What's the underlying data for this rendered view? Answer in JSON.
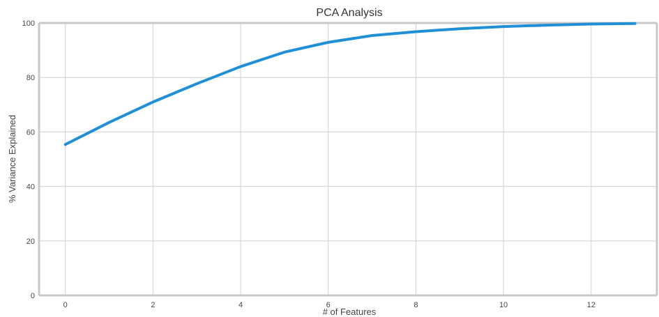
{
  "chart_data": {
    "type": "line",
    "title": "PCA Analysis",
    "xlabel": "# of Features",
    "ylabel": "% Variance Explained",
    "xlim": [
      -0.6,
      13.5
    ],
    "ylim": [
      0,
      100
    ],
    "x_ticks": [
      0,
      2,
      4,
      6,
      8,
      10,
      12
    ],
    "y_ticks": [
      0,
      20,
      40,
      60,
      80,
      100
    ],
    "x_tick_labels": [
      "0",
      "2",
      "4",
      "6",
      "8",
      "10",
      "12"
    ],
    "y_tick_labels": [
      "0",
      "20",
      "40",
      "60",
      "80",
      "100"
    ],
    "grid": true,
    "series": [
      {
        "x": [
          0,
          1,
          2,
          3,
          4,
          5,
          6,
          7,
          8,
          9,
          10,
          11,
          12,
          13
        ],
        "values": [
          55.4,
          63.5,
          71.0,
          77.7,
          84.0,
          89.3,
          92.9,
          95.4,
          96.8,
          97.9,
          98.7,
          99.2,
          99.6,
          99.8
        ],
        "color": "#1f8fd6"
      }
    ],
    "colors": {
      "line": "#1f8fd6",
      "grid": "#d0d0d0",
      "spine": "#c8c8c8",
      "text": "#444444"
    }
  }
}
